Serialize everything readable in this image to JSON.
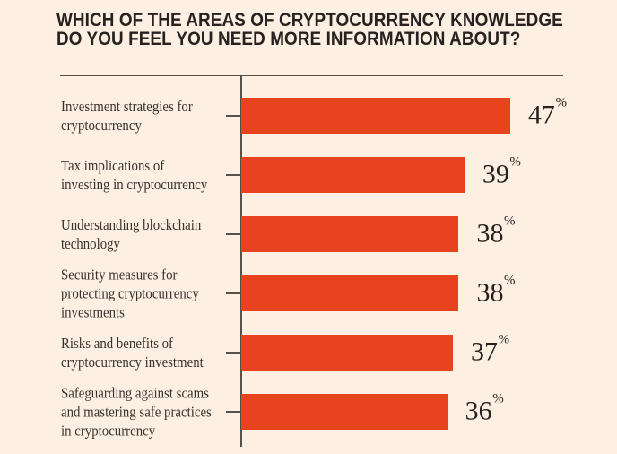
{
  "title": {
    "line1": "WHICH OF THE AREAS OF CRYPTOCURRENCY KNOWLEDGE",
    "line2": "DO YOU FEEL YOU NEED MORE INFORMATION ABOUT?"
  },
  "chart_data": {
    "type": "bar",
    "orientation": "horizontal",
    "title": "WHICH OF THE AREAS OF CRYPTOCURRENCY KNOWLEDGE DO YOU FEEL YOU NEED MORE INFORMATION ABOUT?",
    "categories": [
      [
        "Investment strategies for",
        "cryptocurrency"
      ],
      [
        "Tax implications of",
        "investing in cryptocurrency"
      ],
      [
        "Understanding blockchain",
        "technology"
      ],
      [
        "Security measures for",
        "protecting cryptocurrency",
        "investments"
      ],
      [
        "Risks and benefits of",
        "cryptocurrency investment"
      ],
      [
        "Safeguarding against scams",
        "and mastering safe practices",
        "in cryptocurrency"
      ]
    ],
    "values": [
      47,
      39,
      38,
      38,
      37,
      36
    ],
    "unit": "%",
    "value_labels": [
      "47%",
      "39%",
      "38%",
      "38%",
      "37%",
      "36%"
    ],
    "xlim": [
      0,
      50
    ],
    "grid": false,
    "legend": false,
    "bar_color": "#e8431f"
  },
  "colors": {
    "background": "#fdf0e2",
    "bar": "#e8431f",
    "axis_line": "#57514a",
    "title_text": "#272120",
    "label_text": "#38322e",
    "value_text": "#272120"
  }
}
